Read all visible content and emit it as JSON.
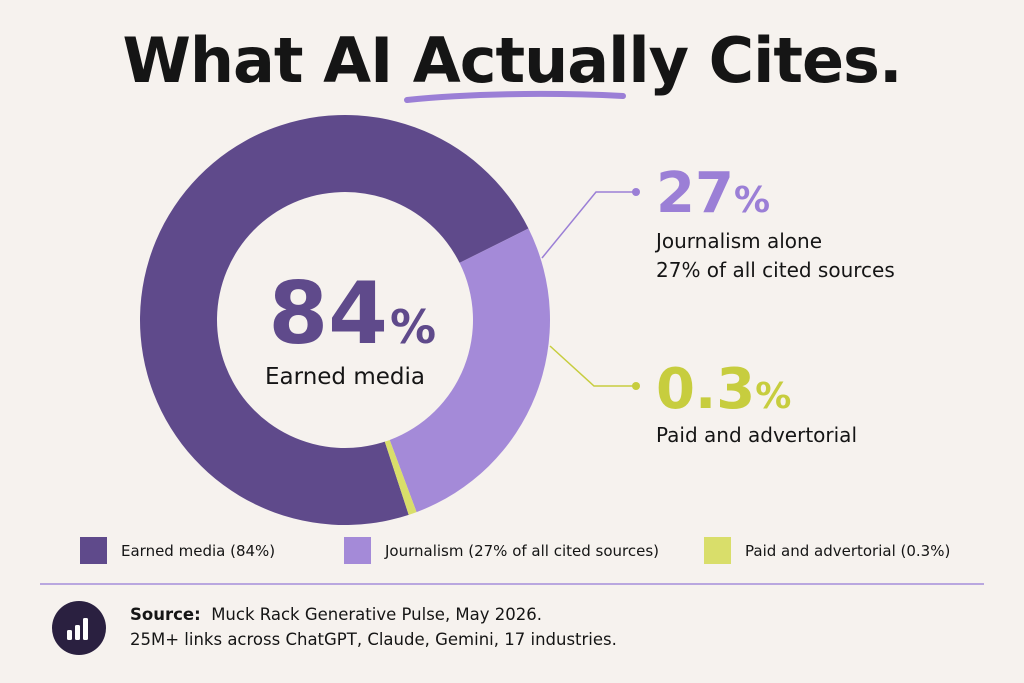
{
  "title": {
    "before": "What AI ",
    "highlight": "Actually",
    "after": " Cites."
  },
  "colors": {
    "earned": "#5f4a8b",
    "journalism": "#a48ad8",
    "paid": "#d9de6a",
    "paid_text": "#c7cd3e",
    "journalism_text": "#9b7fd6",
    "background": "#f6f2ee",
    "accent_line": "#9b7fd6"
  },
  "chart_data": {
    "type": "pie",
    "variant": "donut",
    "segments": [
      {
        "label": "Earned media",
        "value": 84
      },
      {
        "label": "Journalism",
        "value": 27
      },
      {
        "label": "Paid and advertorial",
        "value": 0.3
      }
    ],
    "center": {
      "value": "84",
      "unit": "%",
      "label": "Earned media"
    },
    "annotations": [
      {
        "value": "27",
        "unit": "%",
        "lines": [
          "Journalism alone",
          "27% of all cited sources"
        ]
      },
      {
        "value": "0.3",
        "unit": "%",
        "lines": [
          "Paid and advertorial"
        ]
      }
    ],
    "legend": [
      "Earned media (84%)",
      "Journalism (27% of all cited sources)",
      "Paid and advertorial (0.3%)"
    ],
    "legend_position": "bottom"
  },
  "source": {
    "label": "Source:",
    "line1": "Muck Rack Generative Pulse, May 2026.",
    "line2": "25M+ links across ChatGPT, Claude, Gemini, 17 industries."
  },
  "icons": {
    "source": "bar-chart-icon"
  }
}
